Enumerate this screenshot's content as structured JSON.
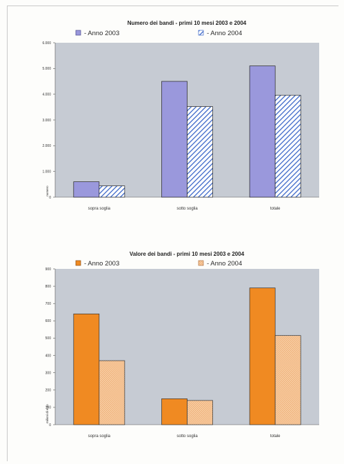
{
  "chart_data": [
    {
      "type": "bar",
      "title": "Numero dei bandi - primi 10 mesi 2003 e 2004",
      "ylabel": "numero",
      "xlabel": "",
      "categories": [
        "sopra soglia",
        "sotto soglia",
        "totale"
      ],
      "series": [
        {
          "name": "- Anno 2003",
          "values": [
            600,
            4500,
            5100
          ]
        },
        {
          "name": "- Anno 2004",
          "values": [
            440,
            3520,
            3960
          ]
        }
      ],
      "ylim": [
        0,
        6000
      ],
      "yticks": [
        "0",
        "1.000",
        "2.000",
        "3.000",
        "4.000",
        "5.000",
        "6.000"
      ],
      "ytick_values": [
        0,
        1000,
        2000,
        3000,
        4000,
        5000,
        6000
      ],
      "grid": false,
      "legend_position": "top",
      "colors": {
        "series1": "#9a98dc",
        "series2_hatch": "#3a66c8",
        "plot_bg": "#c6cbd3"
      }
    },
    {
      "type": "bar",
      "title": "Valore dei bandi - primi 10 mesi 2003 e 2004",
      "ylabel": "milioni di euro",
      "xlabel": "",
      "categories": [
        "sopra soglia",
        "sotto soglia",
        "totale"
      ],
      "series": [
        {
          "name": "- Anno 2003",
          "values": [
            640,
            150,
            790
          ]
        },
        {
          "name": "- Anno 2004",
          "values": [
            370,
            140,
            515
          ]
        }
      ],
      "ylim": [
        0,
        900
      ],
      "yticks": [
        "0",
        "100",
        "200",
        "300",
        "400",
        "500",
        "600",
        "700",
        "800",
        "900"
      ],
      "ytick_values": [
        0,
        100,
        200,
        300,
        400,
        500,
        600,
        700,
        800,
        900
      ],
      "grid": false,
      "legend_position": "top",
      "colors": {
        "series1": "#f08a22",
        "series2": "#f8cda3",
        "plot_bg": "#c6cbd3"
      }
    }
  ]
}
